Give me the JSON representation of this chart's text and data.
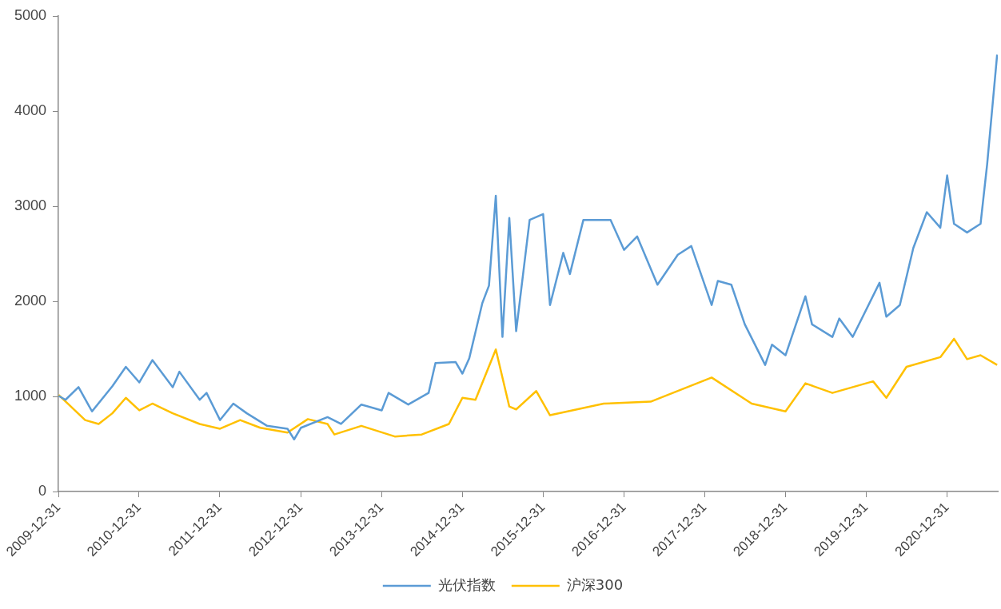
{
  "chart_data": {
    "type": "line",
    "xlim": [
      "2009-12-31",
      "2021-08-18"
    ],
    "xticks": [
      "2009-12-31",
      "2010-12-31",
      "2011-12-31",
      "2012-12-31",
      "2013-12-31",
      "2014-12-31",
      "2015-12-31",
      "2016-12-31",
      "2017-12-31",
      "2018-12-31",
      "2019-12-31",
      "2020-12-31"
    ],
    "ylim": [
      0,
      5000
    ],
    "yticks": [
      0,
      1000,
      2000,
      3000,
      4000,
      5000
    ],
    "grid": false,
    "legend": "bottom",
    "marker": "none",
    "line_style": "solid",
    "series": [
      {
        "name": "光伏指数",
        "color": "#5b9bd5",
        "x": [
          "2010-01",
          "2010-02",
          "2010-04",
          "2010-06",
          "2010-09",
          "2010-11",
          "2011-01",
          "2011-03",
          "2011-06",
          "2011-07",
          "2011-10",
          "2011-11",
          "2012-01",
          "2012-03",
          "2012-05",
          "2012-08",
          "2012-11",
          "2012-12",
          "2013-01",
          "2013-05",
          "2013-07",
          "2013-10",
          "2014-01",
          "2014-02",
          "2014-05",
          "2014-08",
          "2014-09",
          "2014-12",
          "2015-01",
          "2015-02",
          "2015-04",
          "2015-05",
          "2015-06",
          "2015-07",
          "2015-08",
          "2015-09",
          "2015-11",
          "2016-01",
          "2016-02",
          "2016-04",
          "2016-05",
          "2016-07",
          "2016-11",
          "2017-01",
          "2017-03",
          "2017-06",
          "2017-09",
          "2017-11",
          "2018-02",
          "2018-03",
          "2018-05",
          "2018-07",
          "2018-10",
          "2018-11",
          "2019-01",
          "2019-04",
          "2019-05",
          "2019-08",
          "2019-09",
          "2019-11",
          "2020-03",
          "2020-04",
          "2020-06",
          "2020-08",
          "2020-10",
          "2020-12",
          "2021-01",
          "2021-02",
          "2021-04",
          "2021-06",
          "2021-07",
          "2021-08-15"
        ],
        "values": [
          1006,
          965,
          1098,
          843,
          1108,
          1311,
          1148,
          1382,
          1098,
          1260,
          965,
          1037,
          752,
          925,
          823,
          691,
          661,
          549,
          671,
          783,
          711,
          915,
          854,
          1037,
          915,
          1037,
          1352,
          1362,
          1240,
          1402,
          1982,
          2165,
          3110,
          1626,
          2876,
          1687,
          2856,
          2917,
          1961,
          2510,
          2287,
          2856,
          2856,
          2541,
          2683,
          2175,
          2490,
          2581,
          1961,
          2215,
          2175,
          1758,
          1331,
          1545,
          1433,
          2053,
          1758,
          1626,
          1819,
          1626,
          2195,
          1839,
          1961,
          2561,
          2937,
          2774,
          3323,
          2815,
          2724,
          2815,
          3445,
          4593
        ]
      },
      {
        "name": "沪深300",
        "color": "#ffc000",
        "x": [
          "2010-01",
          "2010-05",
          "2010-07",
          "2010-09",
          "2010-11",
          "2011-01",
          "2011-03",
          "2011-06",
          "2011-10",
          "2012-01",
          "2012-04",
          "2012-07",
          "2012-11",
          "2013-02",
          "2013-05",
          "2013-06",
          "2013-10",
          "2014-03",
          "2014-07",
          "2014-11",
          "2015-01",
          "2015-03",
          "2015-06",
          "2015-08",
          "2015-09",
          "2015-12",
          "2016-02",
          "2016-10",
          "2017-05",
          "2018-02",
          "2018-08",
          "2019-01",
          "2019-04",
          "2019-08",
          "2020-02",
          "2020-04",
          "2020-07",
          "2020-12",
          "2021-02",
          "2021-04",
          "2021-06",
          "2021-08-15"
        ],
        "values": [
          1016,
          752,
          711,
          823,
          986,
          854,
          925,
          823,
          711,
          661,
          752,
          671,
          620,
          762,
          711,
          600,
          691,
          579,
          600,
          711,
          986,
          965,
          1494,
          894,
          864,
          1057,
          803,
          925,
          945,
          1199,
          925,
          843,
          1138,
          1037,
          1159,
          986,
          1311,
          1413,
          1606,
          1392,
          1433,
          1331
        ]
      }
    ]
  }
}
